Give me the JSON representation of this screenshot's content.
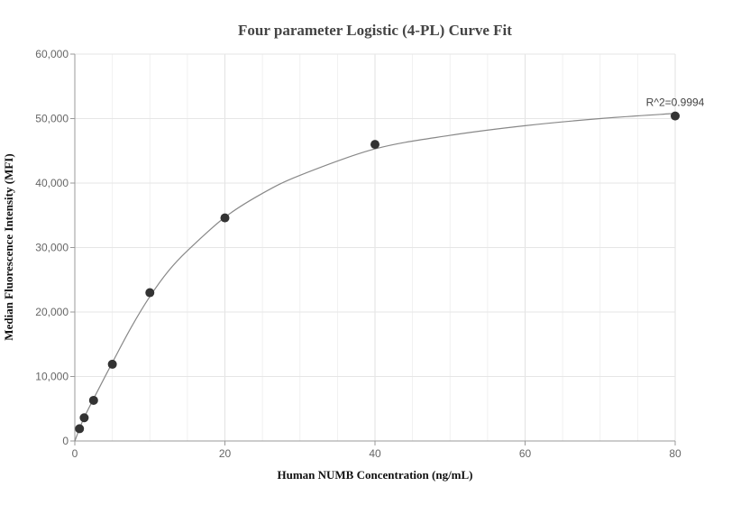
{
  "chart_data": {
    "type": "scatter",
    "title": "Four parameter Logistic (4-PL) Curve Fit",
    "xlabel": "Human NUMB Concentration (ng/mL)",
    "ylabel": "Median Fluorescence Intensity (MFI)",
    "xlim": [
      0,
      80
    ],
    "ylim": [
      0,
      60000
    ],
    "x_ticks": [
      0,
      20,
      40,
      60,
      80
    ],
    "y_ticks": [
      0,
      10000,
      20000,
      30000,
      40000,
      50000,
      60000
    ],
    "x_tick_labels": [
      "0",
      "20",
      "40",
      "60",
      "80"
    ],
    "y_tick_labels": [
      "0",
      "10,000",
      "20,000",
      "30,000",
      "40,000",
      "50,000",
      "60,000"
    ],
    "grid": true,
    "series": [
      {
        "x": [
          0.625,
          1.25,
          2.5,
          5,
          10,
          20,
          40,
          80
        ],
        "y": [
          1900,
          3600,
          6300,
          11900,
          23000,
          34600,
          46000,
          50400
        ]
      }
    ],
    "fit_curve": {
      "model": "4PL",
      "x": [
        0,
        0.625,
        1.25,
        2.5,
        5,
        7.5,
        10,
        12.5,
        15,
        20,
        25,
        30,
        40,
        50,
        60,
        70,
        80
      ],
      "y": [
        0,
        1900,
        3650,
        6550,
        12150,
        17600,
        22400,
        26400,
        29500,
        34700,
        38400,
        41200,
        45300,
        47400,
        48900,
        50000,
        50800
      ]
    },
    "annotation": "R^2=0.9994",
    "colors": {
      "points": "#333333",
      "curve": "#888888",
      "grid": "#e6e6e6",
      "axis": "#999999"
    }
  }
}
